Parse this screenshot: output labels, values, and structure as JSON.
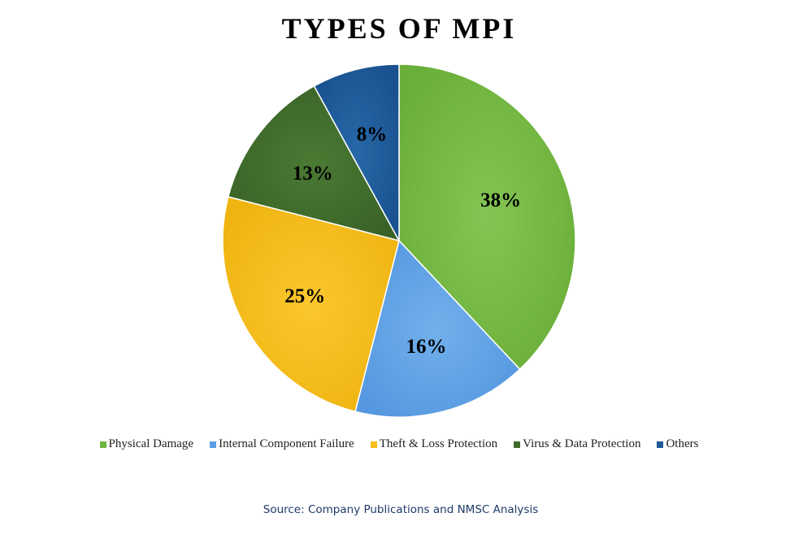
{
  "chart_data": {
    "type": "pie",
    "title": "TYPES OF MPI",
    "categories": [
      "Physical Damage",
      "Internal Component Failure",
      "Theft & Loss Protection",
      "Virus & Data Protection",
      "Others"
    ],
    "values": [
      38,
      16,
      25,
      13,
      8
    ],
    "labels": [
      "38%",
      "16%",
      "25%",
      "13%",
      "8%"
    ],
    "colors": [
      "#6fb63f",
      "#5b9ee3",
      "#f7bd17",
      "#3f6b2a",
      "#1d5a96"
    ],
    "legend_position": "bottom"
  },
  "source": "Source: Company Publications and NMSC Analysis"
}
